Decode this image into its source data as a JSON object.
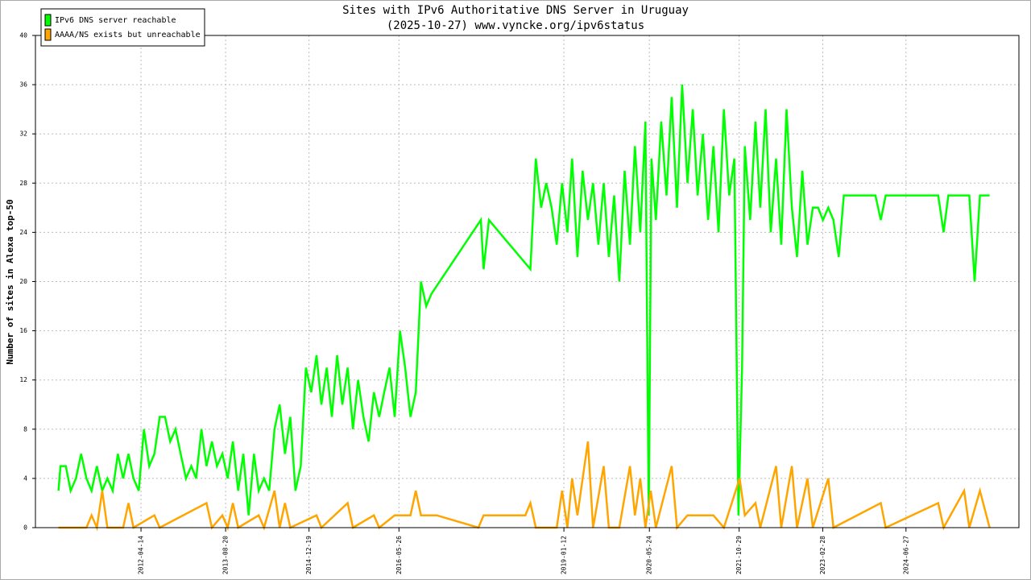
{
  "chart_data": {
    "type": "line",
    "title": "Sites with IPv6 Authoritative DNS Server in Uruguay",
    "subtitle": "(2025-10-27) www.vyncke.org/ipv6status",
    "y_label": "Number of sites in Alexa top-50",
    "grid": true,
    "legend": "upper left",
    "xlim": [
      "2010-08-08",
      "2026-04-16"
    ],
    "xticks": [
      "2012-04-14",
      "2013-08-20",
      "2014-12-19",
      "2016-05-26",
      "2019-01-12",
      "2020-05-24",
      "2021-10-29",
      "2023-02-28",
      "2024-06-27"
    ],
    "ylim": [
      0,
      40
    ],
    "yticks": [
      0,
      4,
      8,
      12,
      16,
      20,
      24,
      28,
      32,
      36,
      40
    ],
    "series": [
      {
        "name": "IPv6 DNS server reachable",
        "color": "#00ff00",
        "x": [
          "2010-12-20",
          "2011-01-01",
          "2011-02-01",
          "2011-03-01",
          "2011-04-01",
          "2011-05-01",
          "2011-06-01",
          "2011-07-01",
          "2011-08-01",
          "2011-09-01",
          "2011-10-01",
          "2011-11-01",
          "2011-12-01",
          "2012-01-01",
          "2012-02-01",
          "2012-03-01",
          "2012-04-01",
          "2012-05-01",
          "2012-06-01",
          "2012-07-01",
          "2012-08-01",
          "2012-09-01",
          "2012-10-01",
          "2012-11-01",
          "2012-12-01",
          "2013-01-01",
          "2013-02-01",
          "2013-03-01",
          "2013-04-01",
          "2013-05-01",
          "2013-06-01",
          "2013-07-01",
          "2013-08-01",
          "2013-09-01",
          "2013-10-01",
          "2013-11-01",
          "2013-12-01",
          "2014-01-01",
          "2014-02-01",
          "2014-03-01",
          "2014-04-01",
          "2014-05-01",
          "2014-06-01",
          "2014-07-01",
          "2014-08-01",
          "2014-09-01",
          "2014-10-01",
          "2014-11-01",
          "2014-12-01",
          "2015-01-01",
          "2015-02-01",
          "2015-03-01",
          "2015-04-01",
          "2015-05-01",
          "2015-06-01",
          "2015-07-01",
          "2015-08-01",
          "2015-09-01",
          "2015-10-01",
          "2015-11-01",
          "2015-12-01",
          "2016-01-01",
          "2016-02-01",
          "2016-03-01",
          "2016-04-01",
          "2016-05-01",
          "2016-06-01",
          "2016-07-01",
          "2016-08-01",
          "2016-09-01",
          "2016-10-01",
          "2016-11-01",
          "2016-12-01",
          "2017-09-15",
          "2017-10-01",
          "2017-11-01",
          "2018-07-01",
          "2018-08-01",
          "2018-09-01",
          "2018-10-01",
          "2018-11-01",
          "2018-12-01",
          "2019-01-01",
          "2019-02-01",
          "2019-03-01",
          "2019-04-01",
          "2019-05-01",
          "2019-06-01",
          "2019-07-01",
          "2019-08-01",
          "2019-09-01",
          "2019-10-01",
          "2019-11-01",
          "2019-12-01",
          "2020-01-01",
          "2020-02-01",
          "2020-03-01",
          "2020-04-01",
          "2020-05-01",
          "2020-05-20",
          "2020-06-05",
          "2020-07-01",
          "2020-08-01",
          "2020-09-01",
          "2020-10-01",
          "2020-11-01",
          "2020-12-01",
          "2021-01-01",
          "2021-02-01",
          "2021-03-01",
          "2021-04-01",
          "2021-05-01",
          "2021-06-01",
          "2021-07-01",
          "2021-08-01",
          "2021-09-01",
          "2021-10-01",
          "2021-10-25",
          "2021-11-15",
          "2021-12-01",
          "2022-01-01",
          "2022-02-01",
          "2022-03-01",
          "2022-04-01",
          "2022-05-01",
          "2022-06-01",
          "2022-07-01",
          "2022-08-01",
          "2022-09-01",
          "2022-10-01",
          "2022-11-01",
          "2022-12-01",
          "2023-01-01",
          "2023-02-01",
          "2023-03-01",
          "2023-04-01",
          "2023-05-01",
          "2023-06-01",
          "2023-07-01",
          "2024-01-01",
          "2024-02-01",
          "2024-03-01",
          "2025-01-01",
          "2025-02-01",
          "2025-03-01",
          "2025-07-01",
          "2025-08-01",
          "2025-09-01",
          "2025-10-27"
        ],
        "values": [
          3,
          5,
          5,
          3,
          4,
          6,
          4,
          3,
          5,
          3,
          4,
          3,
          6,
          4,
          6,
          4,
          3,
          8,
          5,
          6,
          9,
          9,
          7,
          8,
          6,
          4,
          5,
          4,
          8,
          5,
          7,
          5,
          6,
          4,
          7,
          3,
          6,
          1,
          6,
          3,
          4,
          3,
          8,
          10,
          6,
          9,
          3,
          5,
          13,
          11,
          14,
          10,
          13,
          9,
          14,
          10,
          13,
          8,
          12,
          9,
          7,
          11,
          9,
          11,
          13,
          9,
          16,
          13,
          9,
          11,
          20,
          18,
          19,
          25,
          21,
          25,
          21,
          30,
          26,
          28,
          26,
          23,
          28,
          24,
          30,
          22,
          29,
          25,
          28,
          23,
          28,
          22,
          27,
          20,
          29,
          23,
          31,
          24,
          33,
          1,
          30,
          25,
          33,
          27,
          35,
          26,
          36,
          28,
          34,
          27,
          32,
          25,
          31,
          24,
          34,
          27,
          30,
          1,
          13,
          31,
          25,
          33,
          26,
          34,
          24,
          30,
          23,
          34,
          26,
          22,
          29,
          23,
          26,
          26,
          25,
          26,
          25,
          22,
          27,
          27,
          25,
          27,
          27,
          24,
          27,
          27,
          20,
          27,
          27
        ]
      },
      {
        "name": "AAAA/NS exists but unreachable",
        "color": "#ffa500",
        "x": [
          "2010-12-20",
          "2011-06-01",
          "2011-07-01",
          "2011-08-01",
          "2011-09-01",
          "2011-10-01",
          "2012-01-01",
          "2012-02-01",
          "2012-03-01",
          "2012-07-01",
          "2012-08-01",
          "2013-05-01",
          "2013-06-01",
          "2013-08-01",
          "2013-09-01",
          "2013-10-01",
          "2013-11-01",
          "2014-03-01",
          "2014-04-01",
          "2014-06-01",
          "2014-07-01",
          "2014-08-01",
          "2014-09-01",
          "2015-02-01",
          "2015-03-01",
          "2015-08-01",
          "2015-09-01",
          "2016-01-01",
          "2016-02-01",
          "2016-05-01",
          "2016-08-01",
          "2016-09-01",
          "2016-10-01",
          "2017-01-01",
          "2017-09-01",
          "2017-10-01",
          "2018-06-01",
          "2018-07-01",
          "2018-08-01",
          "2018-12-01",
          "2019-01-01",
          "2019-02-01",
          "2019-03-01",
          "2019-04-01",
          "2019-06-01",
          "2019-07-01",
          "2019-09-01",
          "2019-10-01",
          "2019-12-01",
          "2020-02-01",
          "2020-03-01",
          "2020-04-01",
          "2020-05-01",
          "2020-06-01",
          "2020-07-01",
          "2020-10-01",
          "2020-11-01",
          "2021-01-01",
          "2021-06-01",
          "2021-08-01",
          "2021-11-01",
          "2021-12-01",
          "2022-02-01",
          "2022-03-01",
          "2022-06-01",
          "2022-07-01",
          "2022-09-01",
          "2022-10-01",
          "2022-12-01",
          "2023-01-01",
          "2023-04-01",
          "2023-05-01",
          "2024-02-01",
          "2024-03-01",
          "2025-01-01",
          "2025-02-01",
          "2025-06-01",
          "2025-07-01",
          "2025-09-01",
          "2025-10-27"
        ],
        "values": [
          0,
          0,
          1,
          0,
          3,
          0,
          0,
          2,
          0,
          1,
          0,
          2,
          0,
          1,
          0,
          2,
          0,
          1,
          0,
          3,
          0,
          2,
          0,
          1,
          0,
          2,
          0,
          1,
          0,
          1,
          1,
          3,
          1,
          1,
          0,
          1,
          1,
          2,
          0,
          0,
          3,
          0,
          4,
          1,
          7,
          0,
          5,
          0,
          0,
          5,
          1,
          4,
          0,
          3,
          0,
          5,
          0,
          1,
          1,
          0,
          4,
          1,
          2,
          0,
          5,
          0,
          5,
          0,
          4,
          0,
          4,
          0,
          2,
          0,
          2,
          0,
          3,
          0,
          3,
          0
        ]
      }
    ]
  }
}
